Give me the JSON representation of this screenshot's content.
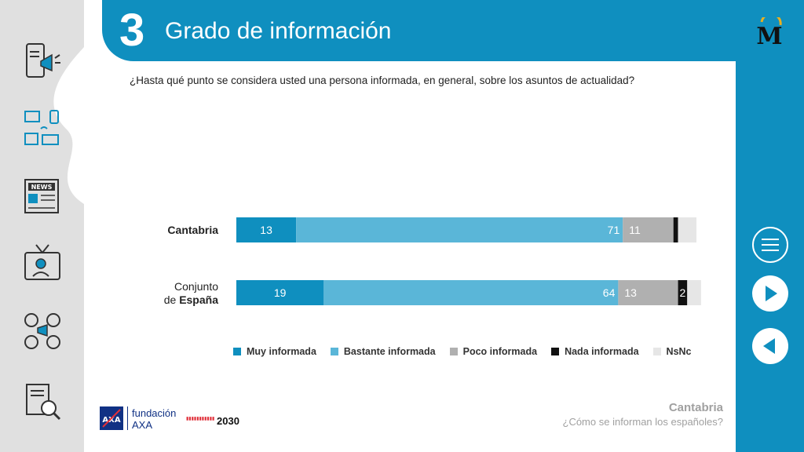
{
  "header": {
    "number": "3",
    "title": "Grado de información"
  },
  "question": "¿Hasta qué punto se considera usted una persona informada, en general, sobre los asuntos de actualidad?",
  "rows": [
    {
      "label_plain": "",
      "label_bold": "Cantabria"
    },
    {
      "label_plain": "Conjunto",
      "label_plain2": "de ",
      "label_bold": "España"
    }
  ],
  "chart_data": {
    "type": "bar",
    "orientation": "horizontal",
    "stacked": true,
    "categories": [
      "Cantabria",
      "Conjunto de España"
    ],
    "series": [
      {
        "name": "Muy informada",
        "color": "#0f8fbf",
        "values": [
          13,
          19
        ]
      },
      {
        "name": "Bastante informada",
        "color": "#5ab6d8",
        "values": [
          71,
          64
        ]
      },
      {
        "name": "Poco informada",
        "color": "#b0b0b0",
        "values": [
          11,
          13
        ]
      },
      {
        "name": "Nada informada",
        "color": "#111111",
        "values": [
          1,
          2
        ]
      },
      {
        "name": "NsNc",
        "color": "#e6e6e6",
        "values": [
          4,
          3
        ]
      }
    ],
    "data_labels": [
      [
        "13",
        "71",
        "11",
        "",
        ""
      ],
      [
        "19",
        "64",
        "13",
        "2",
        ""
      ]
    ],
    "xlim": [
      0,
      100
    ],
    "legend_position": "bottom"
  },
  "legend": [
    "Muy informada",
    "Bastante informada",
    "Poco informada",
    "Nada informada",
    "NsNc"
  ],
  "footer": {
    "region": "Cantabria",
    "subtitle": "¿Cómo se informan los españoles?"
  },
  "sponsor": {
    "fundacion": "fundación",
    "axa": "AXA",
    "agenda_year": "2030"
  },
  "icons": [
    "smartphone-megaphone-icon",
    "devices-icon",
    "newspaper-icon",
    "tv-presenter-icon",
    "social-media-icon",
    "document-search-icon",
    "menu-icon",
    "next-arrow-icon",
    "prev-arrow-icon"
  ],
  "colors": {
    "accent": "#0f8fbf",
    "rail": "#e0e0e0"
  }
}
